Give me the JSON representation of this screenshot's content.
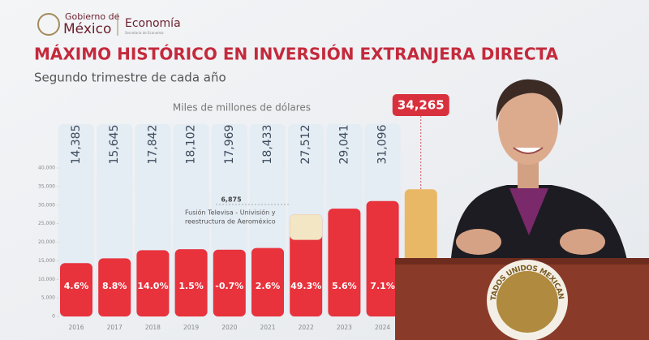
{
  "header": {
    "brand_top": "Gobierno de",
    "brand_main": "México",
    "ministry": "Economía",
    "ministry_small": "Secretaría de Economía"
  },
  "podium_text": "ESTADOS UNIDOS MEXICANOS",
  "chart_data": {
    "type": "bar",
    "title": "MÁXIMO HISTÓRICO EN INVERSIÓN EXTRANJERA DIRECTA",
    "subtitle": "Segundo trimestre de cada año",
    "unit_label": "Miles de millones de dólares",
    "categories": [
      "2016",
      "2017",
      "2018",
      "2019",
      "2020",
      "2021",
      "2022",
      "2023",
      "2024",
      null
    ],
    "values": [
      14385,
      15645,
      17842,
      18102,
      17969,
      18433,
      27512,
      29041,
      31096,
      34265
    ],
    "value_labels": [
      "14,385",
      "15,645",
      "17,842",
      "18,102",
      "17,969",
      "18,433",
      "27,512",
      "29,041",
      "31,096",
      "34,265"
    ],
    "growth_labels": [
      "4.6%",
      "8.8%",
      "14.0%",
      "1.5%",
      "-0.7%",
      "2.6%",
      "49.3%",
      "5.6%",
      "7.1%",
      null
    ],
    "highlight_values": [
      null,
      null,
      null,
      null,
      null,
      null,
      6875,
      null,
      null,
      null
    ],
    "highlight_value_labels": [
      null,
      null,
      null,
      null,
      null,
      null,
      "6,875",
      null,
      null,
      null
    ],
    "annotation": [
      "Fusión Televisa - Univisión y",
      "reestructura de Aeroméxico"
    ],
    "color": "#e8323c",
    "latest_color": "#e9b866",
    "highlight_color": "#f2e6c4",
    "ylim": [
      0,
      40000
    ],
    "yticks": [
      {
        "value": 0,
        "label": "0"
      },
      {
        "value": 5000,
        "label": "5,000"
      },
      {
        "value": 10000,
        "label": "10,000"
      },
      {
        "value": 15000,
        "label": "15,000"
      },
      {
        "value": 20000,
        "label": "20,000"
      },
      {
        "value": 25000,
        "label": "25,000"
      },
      {
        "value": 30000,
        "label": "30,000"
      },
      {
        "value": 35000,
        "label": "35,000"
      },
      {
        "value": 40000,
        "label": "40,000"
      }
    ]
  }
}
